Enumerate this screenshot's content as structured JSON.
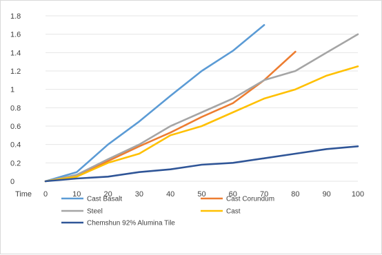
{
  "chart_data": {
    "type": "line",
    "x_axis_label": "Time",
    "x": [
      0,
      10,
      20,
      30,
      40,
      50,
      60,
      70,
      80,
      90,
      100
    ],
    "ylim": [
      0,
      1.8
    ],
    "y_ticks": [
      "0",
      "0.2",
      "0.4",
      "0.6",
      "0.8",
      "1",
      "1.2",
      "1.4",
      "1.6",
      "1.8"
    ],
    "grid": true,
    "legend_position": "bottom",
    "series": [
      {
        "name": "Cast Basalt",
        "color": "#5b9bd5",
        "values": [
          0,
          0.1,
          0.4,
          0.65,
          0.93,
          1.2,
          1.42,
          1.7,
          null,
          null,
          null
        ]
      },
      {
        "name": "Cast Corundum",
        "color": "#ed7d31",
        "values": [
          0,
          0.06,
          0.22,
          0.38,
          0.53,
          0.7,
          0.85,
          1.1,
          1.41,
          null,
          null
        ]
      },
      {
        "name": "Steel",
        "color": "#a5a5a5",
        "values": [
          0,
          0.07,
          0.24,
          0.4,
          0.6,
          0.75,
          0.9,
          1.1,
          1.2,
          1.4,
          1.6
        ]
      },
      {
        "name": "Cast",
        "color": "#ffc000",
        "values": [
          0,
          0.05,
          0.2,
          0.3,
          0.5,
          0.6,
          0.75,
          0.9,
          1.0,
          1.15,
          1.25
        ]
      },
      {
        "name": "Chemshun 92% Alumina Tile",
        "color": "#2f5597",
        "values": [
          0,
          0.03,
          0.05,
          0.1,
          0.13,
          0.18,
          0.2,
          0.25,
          0.3,
          0.35,
          0.38
        ]
      }
    ]
  }
}
